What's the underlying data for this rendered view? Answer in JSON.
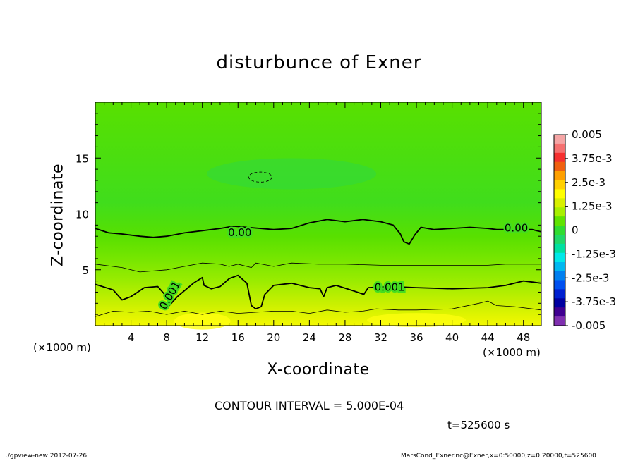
{
  "figure": {
    "title": "disturbunce of Exner",
    "contour_interval_text": "CONTOUR INTERVAL = 5.000E-04",
    "time_text": "t=525600 s",
    "footer_left": "./gpview-new   2012-07-26",
    "footer_right": "MarsCond_Exner.nc@Exner,x=0:50000,z=0:20000,t=525600"
  },
  "chart_data": {
    "type": "contour",
    "title": "disturbunce of Exner",
    "xlabel": "X-coordinate",
    "ylabel": "Z-coordinate",
    "x_unit_left": "(×1000 m)",
    "x_unit_right": "(×1000 m)",
    "xlim": [
      0,
      50
    ],
    "ylim": [
      0,
      20
    ],
    "x_ticks": [
      4,
      8,
      12,
      16,
      20,
      24,
      28,
      32,
      36,
      40,
      44,
      48
    ],
    "y_ticks": [
      5,
      10,
      15
    ],
    "contour_interval": 0.0005,
    "contour_labels": [
      {
        "text": "0.00",
        "x": 16.2,
        "y": 8.3
      },
      {
        "text": "0.00",
        "x": 47.2,
        "y": 8.7
      },
      {
        "text": "0.001",
        "x": 8.4,
        "y": 2.7,
        "angle": -60
      },
      {
        "text": "0.001",
        "x": 33.0,
        "y": 3.4
      }
    ],
    "contours": [
      {
        "level": 0.0,
        "style": "thick",
        "points": [
          [
            0,
            8.7
          ],
          [
            1.5,
            8.3
          ],
          [
            3,
            8.2
          ],
          [
            5,
            8.0
          ],
          [
            6.5,
            7.9
          ],
          [
            8,
            8.0
          ],
          [
            10,
            8.3
          ],
          [
            12,
            8.5
          ],
          [
            14,
            8.7
          ],
          [
            15.5,
            8.9
          ],
          [
            20,
            8.6
          ],
          [
            22,
            8.7
          ],
          [
            24,
            9.2
          ],
          [
            26,
            9.5
          ],
          [
            28,
            9.3
          ],
          [
            30,
            9.5
          ],
          [
            32,
            9.3
          ],
          [
            33.4,
            9.0
          ],
          [
            34.2,
            8.2
          ],
          [
            34.6,
            7.5
          ],
          [
            35.2,
            7.3
          ],
          [
            35.8,
            8.1
          ],
          [
            36.5,
            8.8
          ],
          [
            38,
            8.6
          ],
          [
            40,
            8.7
          ],
          [
            42,
            8.8
          ],
          [
            44,
            8.7
          ],
          [
            45,
            8.6
          ],
          [
            49,
            8.6
          ],
          [
            50,
            8.4
          ]
        ]
      },
      {
        "level": 0.0005,
        "style": "thin",
        "points": [
          [
            0,
            5.5
          ],
          [
            3,
            5.2
          ],
          [
            5,
            4.8
          ],
          [
            8,
            5.0
          ],
          [
            10,
            5.3
          ],
          [
            12,
            5.6
          ],
          [
            14,
            5.5
          ],
          [
            15,
            5.3
          ],
          [
            16,
            5.5
          ],
          [
            17.5,
            5.2
          ],
          [
            18,
            5.6
          ],
          [
            20,
            5.3
          ],
          [
            22,
            5.6
          ],
          [
            25,
            5.5
          ],
          [
            28,
            5.5
          ],
          [
            32,
            5.4
          ],
          [
            36,
            5.4
          ],
          [
            40,
            5.4
          ],
          [
            44,
            5.4
          ],
          [
            46,
            5.5
          ],
          [
            48,
            5.5
          ],
          [
            50,
            5.5
          ]
        ]
      },
      {
        "level": 0.001,
        "style": "thick",
        "points": [
          [
            0,
            3.7
          ],
          [
            2,
            3.2
          ],
          [
            3,
            2.3
          ],
          [
            4,
            2.6
          ],
          [
            5.5,
            3.4
          ],
          [
            7,
            3.5
          ],
          [
            8,
            2.6
          ],
          [
            8.3,
            1.8
          ],
          [
            9.2,
            2.6
          ],
          [
            11,
            3.8
          ],
          [
            12,
            4.3
          ],
          [
            12.2,
            3.6
          ],
          [
            13,
            3.3
          ],
          [
            14,
            3.5
          ],
          [
            15,
            4.2
          ],
          [
            16,
            4.5
          ],
          [
            17,
            3.8
          ],
          [
            17.2,
            3.0
          ],
          [
            17.5,
            1.8
          ],
          [
            18,
            1.5
          ],
          [
            18.6,
            1.7
          ],
          [
            19,
            2.8
          ],
          [
            20,
            3.6
          ],
          [
            22,
            3.8
          ],
          [
            24,
            3.4
          ],
          [
            25.2,
            3.3
          ],
          [
            25.6,
            2.6
          ],
          [
            26,
            3.4
          ],
          [
            27,
            3.6
          ],
          [
            29,
            3.1
          ],
          [
            30.1,
            2.8
          ],
          [
            30.6,
            3.4
          ],
          [
            33,
            3.5
          ],
          [
            36,
            3.4
          ],
          [
            40,
            3.3
          ],
          [
            44,
            3.4
          ],
          [
            46,
            3.6
          ],
          [
            48,
            4.0
          ],
          [
            49,
            3.9
          ],
          [
            50,
            3.8
          ]
        ]
      },
      {
        "level": 0.0015,
        "style": "thin",
        "points": [
          [
            0,
            0.8
          ],
          [
            2,
            1.3
          ],
          [
            4,
            1.2
          ],
          [
            6,
            1.3
          ],
          [
            8,
            1.0
          ],
          [
            10,
            1.3
          ],
          [
            12,
            1.0
          ],
          [
            14,
            1.3
          ],
          [
            16,
            1.1
          ],
          [
            18,
            1.2
          ],
          [
            20,
            1.3
          ],
          [
            22,
            1.3
          ],
          [
            24,
            1.1
          ],
          [
            26,
            1.4
          ],
          [
            28,
            1.2
          ],
          [
            30,
            1.3
          ],
          [
            31.5,
            1.5
          ],
          [
            34,
            1.4
          ],
          [
            36,
            1.4
          ],
          [
            40,
            1.5
          ],
          [
            43,
            2.0
          ],
          [
            44,
            2.2
          ],
          [
            45,
            1.8
          ],
          [
            47,
            1.7
          ],
          [
            49,
            1.5
          ],
          [
            50,
            1.4
          ]
        ]
      },
      {
        "level": -0.0005,
        "style": "dashed",
        "ellipse": {
          "cx": 18.5,
          "cy": 13.3,
          "rx": 1.3,
          "ry": 0.45
        }
      }
    ],
    "colorbar": {
      "labels": [
        "0.005",
        "3.75e-3",
        "2.5e-3",
        "1.25e-3",
        "0",
        "-1.25e-3",
        "-2.5e-3",
        "-3.75e-3",
        "-0.005"
      ],
      "colors": [
        "#f5a5a5",
        "#f57070",
        "#f52f2f",
        "#f06010",
        "#ffa000",
        "#ffd000",
        "#ffff00",
        "#d8f000",
        "#a8ef00",
        "#60e300",
        "#30dc30",
        "#20d868",
        "#00e0a0",
        "#00e8e8",
        "#00b8f0",
        "#0080f0",
        "#0050f0",
        "#0020d0",
        "#0000a0",
        "#400090",
        "#8030b0"
      ]
    }
  }
}
